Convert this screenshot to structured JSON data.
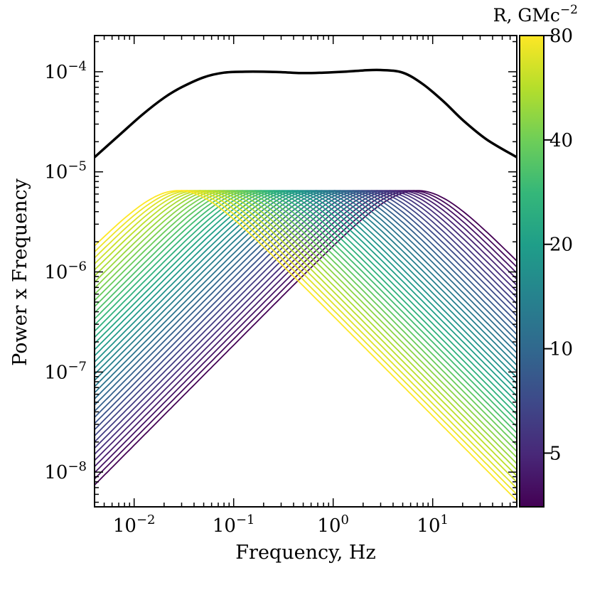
{
  "chart_data": {
    "type": "line",
    "xlabel": "Frequency, Hz",
    "ylabel": "Power x Frequency",
    "xscale": "log",
    "yscale": "log",
    "xlim": [
      0.004,
      70
    ],
    "ylim": [
      4.5e-09,
      0.00023
    ],
    "x_ticks": [
      {
        "label_base": "10",
        "label_exp": "−2",
        "value": 0.01
      },
      {
        "label_base": "10",
        "label_exp": "−1",
        "value": 0.1
      },
      {
        "label_base": "10",
        "label_exp": "0",
        "value": 1
      },
      {
        "label_base": "10",
        "label_exp": "1",
        "value": 10
      }
    ],
    "y_ticks": [
      {
        "label_base": "10",
        "label_exp": "−8",
        "value": 1e-08
      },
      {
        "label_base": "10",
        "label_exp": "−7",
        "value": 1e-07
      },
      {
        "label_base": "10",
        "label_exp": "−6",
        "value": 1e-06
      },
      {
        "label_base": "10",
        "label_exp": "−5",
        "value": 1e-05
      },
      {
        "label_base": "10",
        "label_exp": "−4",
        "value": 0.0001
      }
    ],
    "colorbar": {
      "title_text": "R, GMc",
      "title_exp": "−2",
      "colormap": "viridis",
      "scale": "log",
      "range": [
        3.5,
        80
      ],
      "ticks": [
        {
          "label": "80",
          "value": 80
        },
        {
          "label": "40",
          "value": 40
        },
        {
          "label": "20",
          "value": 20
        },
        {
          "label": "10",
          "value": 10
        },
        {
          "label": "5",
          "value": 5
        }
      ],
      "colors": [
        "#440154",
        "#482878",
        "#3e4989",
        "#31688e",
        "#26828e",
        "#1f9e89",
        "#35b779",
        "#6ece58",
        "#b5de2b",
        "#fde725"
      ]
    },
    "family": {
      "description": "Lorentzian-like power x frequency curves, one per radius R",
      "count": 40,
      "peak_value": 6.5e-06,
      "peak_freq_at_min_R": 7.0,
      "peak_freq_at_max_R": 0.028,
      "R_min": 3.5,
      "R_max": 80
    },
    "total_curve": {
      "name": "total",
      "color": "#000000",
      "x": [
        0.004,
        0.007,
        0.012,
        0.02,
        0.03,
        0.05,
        0.08,
        0.13,
        0.2,
        0.3,
        0.5,
        0.8,
        1.3,
        2,
        3,
        5,
        8,
        13,
        20,
        35,
        70
      ],
      "y": [
        1.4e-05,
        2.3e-05,
        3.7e-05,
        5.5e-05,
        7e-05,
        8.8e-05,
        9.8e-05,
        0.0001,
        0.0001,
        9.9e-05,
        9.7e-05,
        9.8e-05,
        0.0001,
        0.000103,
        0.000104,
        9.8e-05,
        7.5e-05,
        5e-05,
        3.3e-05,
        2.1e-05,
        1.4e-05
      ]
    }
  }
}
